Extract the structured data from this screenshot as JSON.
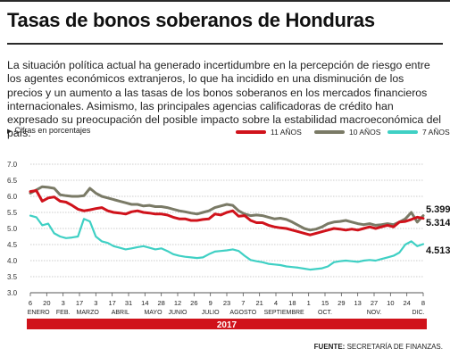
{
  "header": {
    "title": "Tasas de bonos soberanos de Honduras"
  },
  "lede": "La situación política actual ha generado incertidumbre en la percepción de riesgo entre los agentes económicos extranjeros, lo que ha incidido  en una disminución de los precios y un aumento a las tasas de los bonos soberanos en los mercados financieros internacionales. Asimismo, las principales agencias calificadoras de crédito han expresado su preocupación del posible impacto sobre la estabilidad macroeconómica del país.",
  "units_note": "Cifras en porcentajes",
  "source": {
    "label": "FUENTE:",
    "text": "SECRETARÍA DE FINANZAS."
  },
  "chart_data": {
    "type": "line",
    "year_label": "2017",
    "ylim": [
      3.0,
      7.0
    ],
    "y_ticks": [
      "7.0",
      "6.5",
      "6.0",
      "5.5",
      "5.0",
      "4.5",
      "4.0",
      "3.5",
      "3.0"
    ],
    "date_ticks": [
      "6",
      "20",
      "3",
      "17",
      "3",
      "17",
      "31",
      "14",
      "28",
      "12",
      "26",
      "9",
      "23",
      "7",
      "21",
      "4",
      "18",
      "1",
      "15",
      "29",
      "13",
      "27",
      "10",
      "24",
      "8"
    ],
    "month_labels": [
      "ENERO",
      "FEB.",
      "MARZO",
      "ABRIL",
      "MAYO",
      "JUNIO",
      "JULIO",
      "AGOSTO",
      "SEPTIEMBRE",
      "OCT.",
      "NOV.",
      "DIC."
    ],
    "grid": true,
    "legend_position": "top-right",
    "series": [
      {
        "name": "11 AÑOS",
        "color": "#d0121b",
        "end_label": "5.314",
        "values": [
          6.15,
          6.18,
          5.85,
          5.95,
          5.98,
          5.85,
          5.82,
          5.72,
          5.6,
          5.55,
          5.58,
          5.62,
          5.65,
          5.55,
          5.5,
          5.48,
          5.45,
          5.52,
          5.55,
          5.5,
          5.48,
          5.45,
          5.45,
          5.42,
          5.35,
          5.3,
          5.3,
          5.25,
          5.25,
          5.28,
          5.3,
          5.45,
          5.42,
          5.5,
          5.55,
          5.38,
          5.4,
          5.25,
          5.18,
          5.18,
          5.1,
          5.05,
          5.02,
          5.0,
          4.95,
          4.9,
          4.85,
          4.8,
          4.85,
          4.9,
          4.95,
          5.0,
          4.98,
          4.95,
          4.98,
          4.95,
          5.0,
          5.05,
          5.0,
          5.05,
          5.1,
          5.05,
          5.2,
          5.22,
          5.28,
          5.35,
          5.314
        ]
      },
      {
        "name": "10 AÑOS",
        "color": "#7a7a66",
        "end_label": "5.399",
        "values": [
          6.1,
          6.2,
          6.3,
          6.28,
          6.25,
          6.05,
          6.02,
          6.0,
          6.0,
          6.02,
          6.25,
          6.1,
          6.0,
          5.95,
          5.9,
          5.85,
          5.8,
          5.75,
          5.75,
          5.7,
          5.72,
          5.68,
          5.68,
          5.65,
          5.6,
          5.55,
          5.52,
          5.48,
          5.45,
          5.5,
          5.55,
          5.65,
          5.7,
          5.75,
          5.72,
          5.55,
          5.45,
          5.4,
          5.42,
          5.4,
          5.35,
          5.3,
          5.32,
          5.28,
          5.2,
          5.1,
          5.0,
          4.95,
          4.98,
          5.05,
          5.15,
          5.2,
          5.22,
          5.25,
          5.2,
          5.15,
          5.12,
          5.15,
          5.1,
          5.12,
          5.15,
          5.12,
          5.2,
          5.3,
          5.5,
          5.2,
          5.399
        ]
      },
      {
        "name": "7 AÑOS",
        "color": "#3fd0c4",
        "end_label": "4.513",
        "values": [
          5.4,
          5.35,
          5.1,
          5.15,
          4.85,
          4.75,
          4.7,
          4.72,
          4.75,
          5.3,
          5.22,
          4.75,
          4.6,
          4.55,
          4.45,
          4.4,
          4.35,
          4.38,
          4.42,
          4.45,
          4.4,
          4.35,
          4.38,
          4.3,
          4.2,
          4.15,
          4.12,
          4.1,
          4.08,
          4.1,
          4.2,
          4.28,
          4.3,
          4.32,
          4.35,
          4.3,
          4.15,
          4.02,
          3.98,
          3.95,
          3.9,
          3.88,
          3.86,
          3.82,
          3.8,
          3.78,
          3.75,
          3.72,
          3.74,
          3.76,
          3.82,
          3.95,
          3.98,
          4.0,
          3.98,
          3.96,
          4.0,
          4.02,
          4.0,
          4.05,
          4.1,
          4.15,
          4.25,
          4.5,
          4.6,
          4.45,
          4.513
        ]
      }
    ]
  }
}
